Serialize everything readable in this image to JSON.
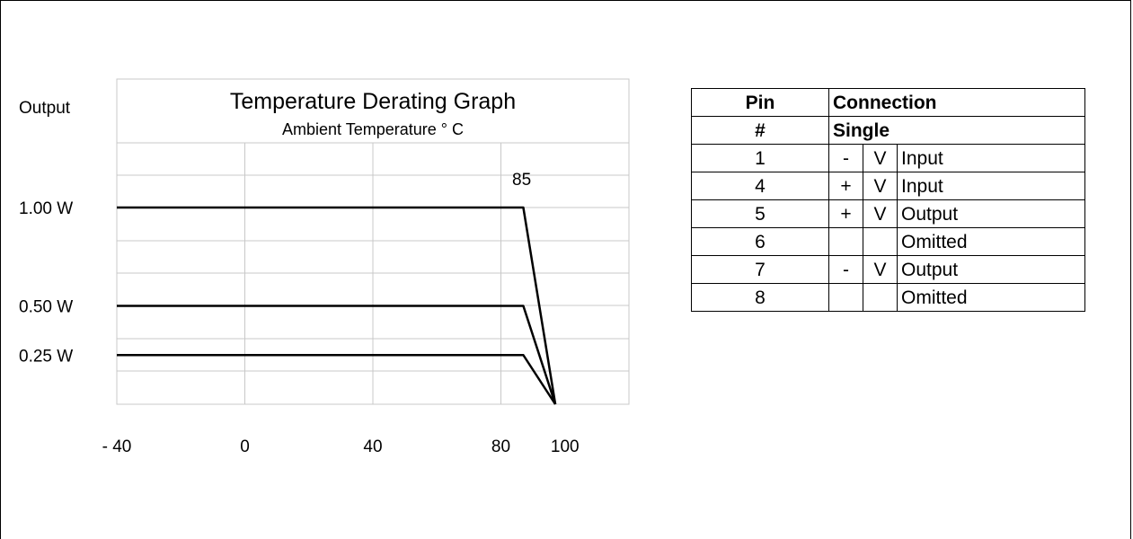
{
  "chart_data": {
    "type": "line",
    "title": "Temperature Derating Graph",
    "subtitle": "Ambient Temperature ° C",
    "ylabel": "Output",
    "x_tick_labels": [
      "- 40",
      "0",
      "40",
      "80",
      "100"
    ],
    "x_ticks": [
      -40,
      0,
      40,
      80,
      100
    ],
    "xlim": [
      -40,
      120
    ],
    "y_tick_labels": [
      "1.00 W",
      "0.50 W",
      "0.25 W"
    ],
    "y_ticks": [
      1.0,
      0.5,
      0.25
    ],
    "annotation": "85",
    "grid": true,
    "series": [
      {
        "values": [
          [
            -40,
            1.0
          ],
          [
            87,
            1.0
          ],
          [
            97,
            0
          ]
        ]
      },
      {
        "values": [
          [
            -40,
            0.5
          ],
          [
            87,
            0.5
          ],
          [
            97,
            0
          ]
        ]
      },
      {
        "values": [
          [
            -40,
            0.25
          ],
          [
            87,
            0.25
          ],
          [
            97,
            0
          ]
        ]
      }
    ]
  },
  "pin_table": {
    "header": {
      "pin": "Pin",
      "connection": "Connection"
    },
    "subheader": {
      "pin": "#",
      "connection": "Single"
    },
    "rows": [
      {
        "pin": "1",
        "sign": "-",
        "v": "V",
        "function": "Input"
      },
      {
        "pin": "4",
        "sign": "+",
        "v": "V",
        "function": "Input"
      },
      {
        "pin": "5",
        "sign": "+",
        "v": "V",
        "function": "Output"
      },
      {
        "pin": "6",
        "sign": "",
        "v": "",
        "function": "Omitted"
      },
      {
        "pin": "7",
        "sign": "-",
        "v": "V",
        "function": "Output"
      },
      {
        "pin": "8",
        "sign": "",
        "v": "",
        "function": "Omitted"
      }
    ]
  }
}
